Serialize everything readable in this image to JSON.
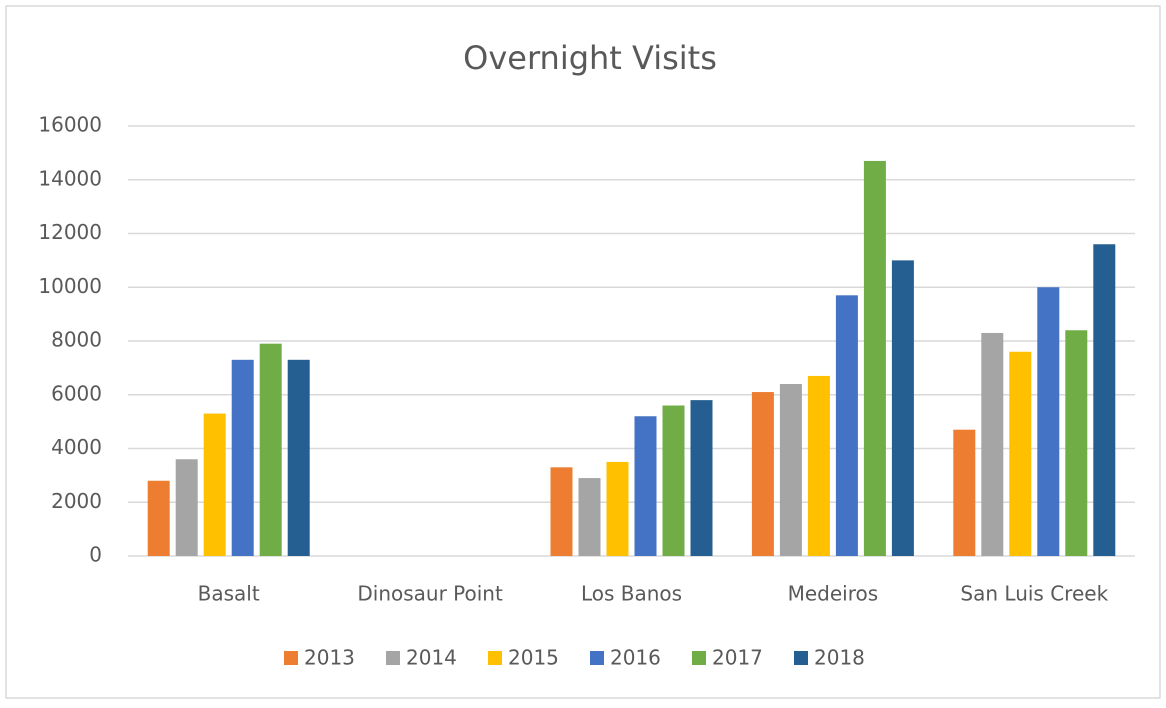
{
  "chart_data": {
    "type": "bar",
    "title": "Overnight Visits",
    "categories": [
      "Basalt",
      "Dinosaur Point",
      "Los Banos",
      "Medeiros",
      "San Luis Creek"
    ],
    "series": [
      {
        "name": "2013",
        "color": "#ed7d31",
        "values": [
          2800,
          0,
          3300,
          6100,
          4700
        ]
      },
      {
        "name": "2014",
        "color": "#a5a5a5",
        "values": [
          3600,
          0,
          2900,
          6400,
          8300
        ]
      },
      {
        "name": "2015",
        "color": "#ffc000",
        "values": [
          5300,
          0,
          3500,
          6700,
          7600
        ]
      },
      {
        "name": "2016",
        "color": "#4472c4",
        "values": [
          7300,
          0,
          5200,
          9700,
          10000
        ]
      },
      {
        "name": "2017",
        "color": "#70ad47",
        "values": [
          7900,
          0,
          5600,
          14700,
          8400
        ]
      },
      {
        "name": "2018",
        "color": "#255e91",
        "values": [
          7300,
          0,
          5800,
          11000,
          11600
        ]
      }
    ],
    "ylim": [
      0,
      16000
    ],
    "yticks": [
      0,
      2000,
      4000,
      6000,
      8000,
      10000,
      12000,
      14000,
      16000
    ],
    "grid": true,
    "legend": "bottom"
  }
}
